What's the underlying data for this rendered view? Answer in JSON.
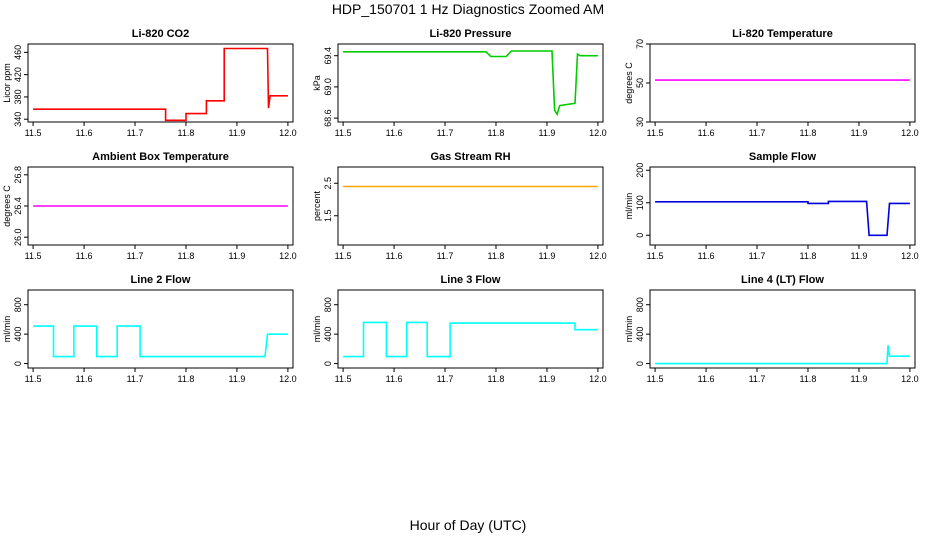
{
  "figure": {
    "title": "HDP_150701  1 Hz Diagnostics Zoomed AM",
    "xlabel": "Hour of Day (UTC)"
  },
  "chart_data": [
    {
      "type": "line",
      "title": "Li-820 CO2",
      "ylabel": "Licor ppm",
      "color": "#ff0000",
      "xlim": [
        11.49,
        12.01
      ],
      "ylim": [
        335,
        475
      ],
      "xticks": [
        "11.5",
        "11.6",
        "11.7",
        "11.8",
        "11.9",
        "12.0"
      ],
      "yticks": [
        "340",
        "380",
        "420",
        "460"
      ],
      "series": [
        {
          "x": [
            11.5,
            11.76,
            11.76,
            11.8,
            11.8,
            11.84,
            11.84,
            11.875,
            11.875,
            11.96,
            11.962,
            11.965,
            12.0
          ],
          "y": [
            358,
            358,
            338,
            338,
            350,
            350,
            373,
            373,
            467,
            467,
            360,
            382,
            382
          ]
        }
      ]
    },
    {
      "type": "line",
      "title": "Li-820 Pressure",
      "ylabel": "kPa",
      "color": "#00cc00",
      "xlim": [
        11.49,
        12.01
      ],
      "ylim": [
        68.55,
        69.55
      ],
      "xticks": [
        "11.5",
        "11.6",
        "11.7",
        "11.8",
        "11.9",
        "12.0"
      ],
      "yticks": [
        "68.6",
        "69.0",
        "69.4"
      ],
      "series": [
        {
          "x": [
            11.5,
            11.78,
            11.79,
            11.82,
            11.83,
            11.91,
            11.915,
            11.92,
            11.925,
            11.955,
            11.96,
            11.965,
            12.0
          ],
          "y": [
            69.45,
            69.45,
            69.39,
            69.39,
            69.46,
            69.46,
            68.7,
            68.65,
            68.76,
            68.79,
            69.42,
            69.4,
            69.4
          ]
        }
      ]
    },
    {
      "type": "line",
      "title": "Li-820 Temperature",
      "ylabel": "degrees C",
      "color": "#ff00ff",
      "xlim": [
        11.49,
        12.01
      ],
      "ylim": [
        30,
        70
      ],
      "xticks": [
        "11.5",
        "11.6",
        "11.7",
        "11.8",
        "11.9",
        "12.0"
      ],
      "yticks": [
        "30",
        "50",
        "70"
      ],
      "series": [
        {
          "x": [
            11.5,
            12.0
          ],
          "y": [
            51.5,
            51.5
          ]
        }
      ]
    },
    {
      "type": "line",
      "title": "Ambient Box Temperature",
      "ylabel": "degrees C",
      "color": "#ff00ff",
      "xlim": [
        11.49,
        12.01
      ],
      "ylim": [
        25.9,
        26.9
      ],
      "xticks": [
        "11.5",
        "11.6",
        "11.7",
        "11.8",
        "11.9",
        "12.0"
      ],
      "yticks": [
        "26.0",
        "26.4",
        "26.8"
      ],
      "series": [
        {
          "x": [
            11.5,
            12.0
          ],
          "y": [
            26.4,
            26.4
          ]
        }
      ]
    },
    {
      "type": "line",
      "title": "Gas Stream RH",
      "ylabel": "percent",
      "color": "#ffa500",
      "xlim": [
        11.49,
        12.01
      ],
      "ylim": [
        0.6,
        3.0
      ],
      "xticks": [
        "11.5",
        "11.6",
        "11.7",
        "11.8",
        "11.9",
        "12.0"
      ],
      "yticks": [
        "1.5",
        "2.5"
      ],
      "series": [
        {
          "x": [
            11.5,
            12.0
          ],
          "y": [
            2.4,
            2.4
          ]
        }
      ]
    },
    {
      "type": "line",
      "title": "Sample Flow",
      "ylabel": "ml/min",
      "color": "#0000dd",
      "xlim": [
        11.49,
        12.01
      ],
      "ylim": [
        -30,
        210
      ],
      "xticks": [
        "11.5",
        "11.6",
        "11.7",
        "11.8",
        "11.9",
        "12.0"
      ],
      "yticks": [
        "0",
        "100",
        "200"
      ],
      "series": [
        {
          "x": [
            11.5,
            11.8,
            11.8,
            11.84,
            11.84,
            11.915,
            11.92,
            11.955,
            11.96,
            12.0
          ],
          "y": [
            103,
            103,
            98,
            98,
            104,
            104,
            0,
            0,
            98,
            98
          ]
        }
      ]
    },
    {
      "type": "line",
      "title": "Line 2 Flow",
      "ylabel": "ml/min",
      "color": "#00ffff",
      "xlim": [
        11.49,
        12.01
      ],
      "ylim": [
        -60,
        1000
      ],
      "xticks": [
        "11.5",
        "11.6",
        "11.7",
        "11.8",
        "11.9",
        "12.0"
      ],
      "yticks": [
        "0",
        "400",
        "800"
      ],
      "series": [
        {
          "x": [
            11.5,
            11.54,
            11.54,
            11.58,
            11.58,
            11.625,
            11.625,
            11.665,
            11.665,
            11.71,
            11.71,
            11.955,
            11.96,
            12.0
          ],
          "y": [
            510,
            510,
            95,
            95,
            510,
            510,
            95,
            95,
            510,
            510,
            95,
            95,
            400,
            400
          ]
        }
      ]
    },
    {
      "type": "line",
      "title": "Line 3 Flow",
      "ylabel": "ml/min",
      "color": "#00ffff",
      "xlim": [
        11.49,
        12.01
      ],
      "ylim": [
        -60,
        1000
      ],
      "xticks": [
        "11.5",
        "11.6",
        "11.7",
        "11.8",
        "11.9",
        "12.0"
      ],
      "yticks": [
        "0",
        "400",
        "800"
      ],
      "series": [
        {
          "x": [
            11.5,
            11.54,
            11.54,
            11.585,
            11.585,
            11.625,
            11.625,
            11.665,
            11.665,
            11.71,
            11.71,
            11.955,
            11.955,
            12.0
          ],
          "y": [
            95,
            95,
            560,
            560,
            95,
            95,
            560,
            560,
            95,
            95,
            550,
            550,
            460,
            460
          ]
        }
      ]
    },
    {
      "type": "line",
      "title": "Line 4 (LT) Flow",
      "ylabel": "ml/min",
      "color": "#00ffff",
      "xlim": [
        11.49,
        12.01
      ],
      "ylim": [
        -60,
        1000
      ],
      "xticks": [
        "11.5",
        "11.6",
        "11.7",
        "11.8",
        "11.9",
        "12.0"
      ],
      "yticks": [
        "0",
        "400",
        "800"
      ],
      "series": [
        {
          "x": [
            11.5,
            11.955,
            11.957,
            11.96,
            11.963,
            12.0
          ],
          "y": [
            0,
            0,
            250,
            100,
            100,
            100
          ]
        }
      ]
    }
  ]
}
